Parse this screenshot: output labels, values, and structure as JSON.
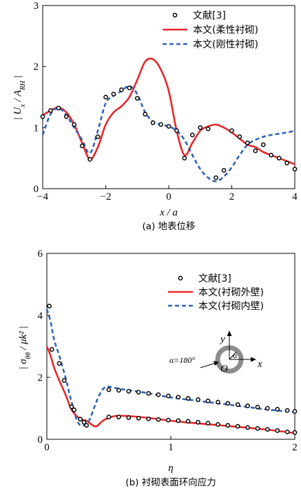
{
  "chart_data": [
    {
      "type": "line",
      "caption": "(a)  地表位移",
      "xlabel": "x / a",
      "ylabel": "| U_x / A_RH |",
      "xlim": [
        -4,
        4
      ],
      "ylim": [
        0,
        3
      ],
      "xticks": [
        "−4",
        "−2",
        "0",
        "2",
        "4"
      ],
      "yticks": [
        "0",
        "1",
        "2",
        "3"
      ],
      "legend_position": "top-right",
      "series": [
        {
          "name": "文献[3]",
          "style": "markers",
          "color": "#000000",
          "x": [
            -4.0,
            -3.75,
            -3.5,
            -3.25,
            -3.0,
            -2.75,
            -2.5,
            -2.25,
            -2.0,
            -1.75,
            -1.5,
            -1.25,
            -1.0,
            -0.75,
            -0.5,
            -0.25,
            0.0,
            0.25,
            0.5,
            0.75,
            1.0,
            1.25,
            1.5,
            1.75,
            2.0,
            2.25,
            2.5,
            2.75,
            3.0,
            3.25,
            3.5,
            3.75,
            4.0
          ],
          "y": [
            1.18,
            1.28,
            1.32,
            1.18,
            1.05,
            0.7,
            0.48,
            0.85,
            1.5,
            1.55,
            1.62,
            1.65,
            1.48,
            1.22,
            1.08,
            1.05,
            1.02,
            0.95,
            0.5,
            0.88,
            1.0,
            0.98,
            0.18,
            0.3,
            0.95,
            0.85,
            0.75,
            0.62,
            0.72,
            0.55,
            0.5,
            0.42,
            0.32
          ]
        },
        {
          "name": "本文(柔性衬砌)",
          "style": "solid",
          "color": "#e8262a",
          "x": [
            -4.0,
            -3.75,
            -3.5,
            -3.25,
            -3.0,
            -2.75,
            -2.5,
            -2.25,
            -2.0,
            -1.75,
            -1.5,
            -1.25,
            -1.0,
            -0.75,
            -0.5,
            -0.25,
            0.0,
            0.25,
            0.5,
            0.75,
            1.0,
            1.25,
            1.5,
            1.75,
            2.0,
            2.25,
            2.5,
            2.75,
            3.0,
            3.25,
            3.5,
            3.75,
            4.0
          ],
          "y": [
            1.2,
            1.28,
            1.33,
            1.25,
            1.05,
            0.75,
            0.48,
            0.68,
            1.05,
            1.25,
            1.35,
            1.5,
            1.78,
            2.08,
            2.12,
            1.95,
            1.6,
            0.95,
            0.55,
            0.75,
            0.95,
            1.02,
            1.05,
            1.0,
            0.92,
            0.82,
            0.72,
            0.68,
            0.6,
            0.55,
            0.5,
            0.45,
            0.4
          ]
        },
        {
          "name": "本文(刚性衬砌)",
          "style": "dashed",
          "color": "#2f63b5",
          "x": [
            -4.0,
            -3.75,
            -3.5,
            -3.25,
            -3.0,
            -2.75,
            -2.5,
            -2.25,
            -2.0,
            -1.75,
            -1.5,
            -1.25,
            -1.0,
            -0.75,
            -0.5,
            -0.25,
            0.0,
            0.25,
            0.5,
            0.75,
            1.0,
            1.25,
            1.5,
            1.75,
            2.0,
            2.25,
            2.5,
            2.75,
            3.0,
            3.25,
            3.5,
            3.75,
            4.0
          ],
          "y": [
            0.88,
            1.22,
            1.32,
            1.2,
            1.0,
            0.8,
            0.58,
            0.95,
            1.4,
            1.52,
            1.6,
            1.68,
            1.55,
            1.25,
            1.1,
            1.05,
            1.02,
            0.95,
            0.8,
            0.55,
            0.32,
            0.18,
            0.12,
            0.2,
            0.35,
            0.55,
            0.72,
            0.8,
            0.85,
            0.88,
            0.9,
            0.92,
            0.95
          ]
        }
      ]
    },
    {
      "type": "line",
      "caption": "(b)  衬砌表面环向应力",
      "xlabel": "η",
      "ylabel": "| σ_θθ / μk² |",
      "xlim": [
        0,
        2
      ],
      "ylim": [
        0,
        6
      ],
      "xticks": [
        "0",
        "1",
        "2"
      ],
      "yticks": [
        "0",
        "2",
        "4",
        "6"
      ],
      "legend_position": "top-right",
      "inset": {
        "y_label": "y",
        "x_label": "x",
        "origin_label": "O",
        "alpha_label": "α",
        "angle_label": "α=180°"
      },
      "series": [
        {
          "name": "文献[3]",
          "style": "markers",
          "color": "#000000",
          "x": [
            0.02,
            0.04,
            0.14,
            0.22,
            0.27,
            0.32,
            0.5,
            0.58,
            0.66,
            0.74,
            0.82,
            0.9,
            0.98,
            1.06,
            1.14,
            1.22,
            1.3,
            1.38,
            1.46,
            1.54,
            1.62,
            1.7,
            1.78,
            1.86,
            1.94,
            2.0,
            0.5,
            0.58,
            0.66,
            0.74,
            0.82,
            0.9,
            0.98,
            1.06,
            1.14,
            1.22,
            1.3,
            1.38,
            1.46,
            1.54,
            1.62,
            1.7,
            1.78,
            1.86,
            1.94,
            2.0,
            0.1,
            0.2,
            0.3
          ],
          "y": [
            4.3,
            2.9,
            1.9,
            0.95,
            0.65,
            0.45,
            1.6,
            1.58,
            1.55,
            1.52,
            1.48,
            1.44,
            1.4,
            1.36,
            1.32,
            1.28,
            1.24,
            1.2,
            1.16,
            1.12,
            1.08,
            1.04,
            1.0,
            0.97,
            0.93,
            0.9,
            0.72,
            0.72,
            0.7,
            0.68,
            0.66,
            0.64,
            0.62,
            0.6,
            0.58,
            0.55,
            0.52,
            0.48,
            0.45,
            0.42,
            0.38,
            0.35,
            0.32,
            0.28,
            0.24,
            0.22,
            2.45,
            1.05,
            0.55
          ]
        },
        {
          "name": "本文(衬砌外壁)",
          "style": "solid",
          "color": "#e8262a",
          "x": [
            0.0,
            0.03,
            0.06,
            0.1,
            0.15,
            0.2,
            0.25,
            0.29,
            0.32,
            0.36,
            0.4,
            0.46,
            0.55,
            0.65,
            0.8,
            1.0,
            1.2,
            1.4,
            1.6,
            1.8,
            2.0
          ],
          "y": [
            3.0,
            2.7,
            2.3,
            1.9,
            1.45,
            0.95,
            0.72,
            0.62,
            0.6,
            0.48,
            0.42,
            0.62,
            0.75,
            0.75,
            0.7,
            0.6,
            0.52,
            0.45,
            0.38,
            0.3,
            0.2
          ]
        },
        {
          "name": "本文(衬砌内壁)",
          "style": "dashed",
          "color": "#2f63b5",
          "x": [
            0.0,
            0.03,
            0.06,
            0.1,
            0.15,
            0.2,
            0.25,
            0.3,
            0.34,
            0.38,
            0.42,
            0.46,
            0.5,
            0.6,
            0.8,
            1.0,
            1.2,
            1.4,
            1.6,
            1.8,
            2.0
          ],
          "y": [
            4.2,
            3.8,
            3.2,
            2.7,
            2.0,
            1.2,
            0.55,
            0.45,
            0.6,
            1.0,
            1.4,
            1.65,
            1.7,
            1.62,
            1.5,
            1.35,
            1.25,
            1.15,
            1.05,
            0.95,
            0.88
          ]
        }
      ]
    }
  ]
}
